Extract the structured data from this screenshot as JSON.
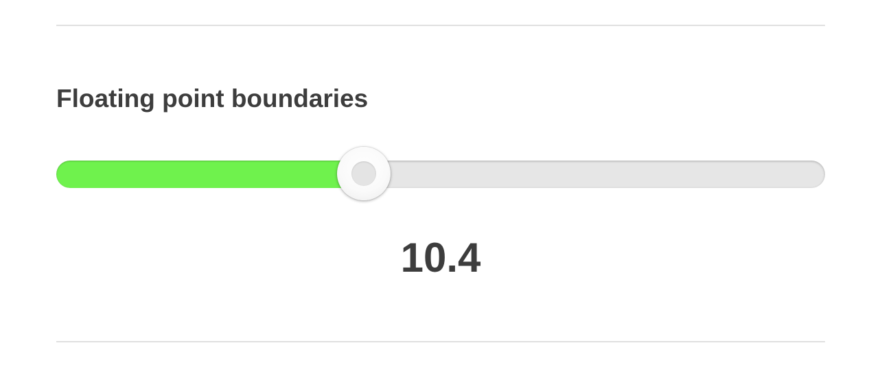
{
  "section": {
    "title": "Floating point boundaries"
  },
  "slider": {
    "value": "10.4",
    "fill_fraction": 0.4,
    "fill_color": "#6ff24d",
    "track_color": "#e6e6e6"
  }
}
